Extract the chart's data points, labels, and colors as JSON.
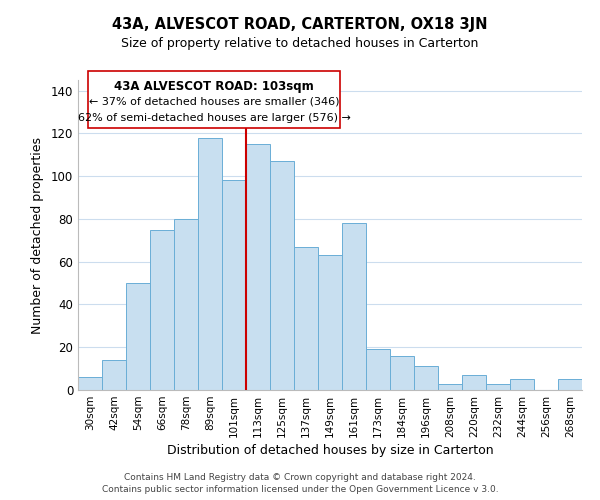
{
  "title": "43A, ALVESCOT ROAD, CARTERTON, OX18 3JN",
  "subtitle": "Size of property relative to detached houses in Carterton",
  "xlabel": "Distribution of detached houses by size in Carterton",
  "ylabel": "Number of detached properties",
  "footer_line1": "Contains HM Land Registry data © Crown copyright and database right 2024.",
  "footer_line2": "Contains public sector information licensed under the Open Government Licence v 3.0.",
  "bar_labels": [
    "30sqm",
    "42sqm",
    "54sqm",
    "66sqm",
    "78sqm",
    "89sqm",
    "101sqm",
    "113sqm",
    "125sqm",
    "137sqm",
    "149sqm",
    "161sqm",
    "173sqm",
    "184sqm",
    "196sqm",
    "208sqm",
    "220sqm",
    "232sqm",
    "244sqm",
    "256sqm",
    "268sqm"
  ],
  "bar_values": [
    6,
    14,
    50,
    75,
    80,
    118,
    98,
    115,
    107,
    67,
    63,
    78,
    19,
    16,
    11,
    3,
    7,
    3,
    5,
    0,
    5
  ],
  "bar_color": "#c8dff0",
  "bar_edge_color": "#6aaed6",
  "vline_x": 6.5,
  "vline_color": "#cc0000",
  "annotation_title": "43A ALVESCOT ROAD: 103sqm",
  "annotation_line1": "← 37% of detached houses are smaller (346)",
  "annotation_line2": "62% of semi-detached houses are larger (576) →",
  "annotation_box_color": "#ffffff",
  "annotation_box_edge": "#cc0000",
  "yticks": [
    0,
    20,
    40,
    60,
    80,
    100,
    120,
    140
  ],
  "ylim": [
    0,
    145
  ],
  "background_color": "#ffffff",
  "grid_color": "#ccddee"
}
